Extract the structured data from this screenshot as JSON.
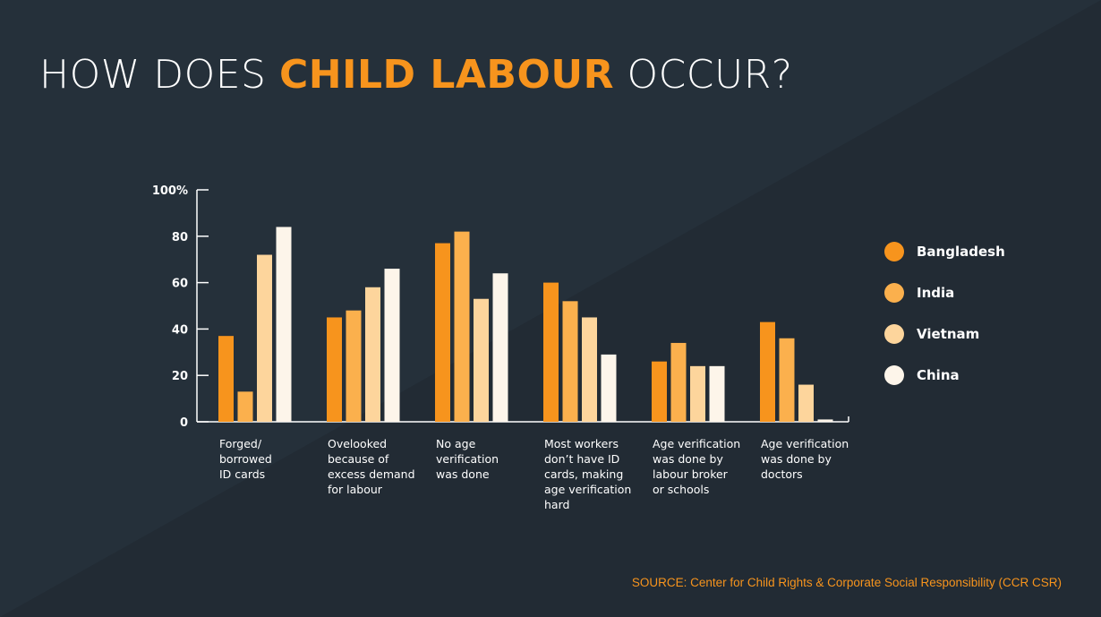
{
  "title": {
    "prefix": "HOW DOES ",
    "highlight": "CHILD LABOUR",
    "suffix": " OCCUR?"
  },
  "source": "SOURCE: Center for Child Rights & Corporate Social Responsibility (CCR CSR)",
  "colors": {
    "background": "#25303a",
    "accent": "#f7941d",
    "series": [
      "#f7941d",
      "#fbb04d",
      "#fdd59c",
      "#fdf5ea"
    ]
  },
  "chart_data": {
    "type": "bar",
    "categories": [
      [
        "Forged/",
        "borrowed",
        "ID cards"
      ],
      [
        "Ovelooked",
        "because of",
        "excess demand",
        "for labour"
      ],
      [
        "No age",
        "verification",
        "was done"
      ],
      [
        "Most workers",
        "don’t have ID",
        "cards, making",
        "age verification",
        "hard"
      ],
      [
        "Age verification",
        "was done by",
        "labour broker",
        "or schools"
      ],
      [
        "Age verification",
        "was done by",
        "doctors"
      ]
    ],
    "series": [
      {
        "name": "Bangladesh",
        "values": [
          37,
          45,
          77,
          60,
          26,
          43
        ]
      },
      {
        "name": "India",
        "values": [
          13,
          48,
          82,
          52,
          34,
          36
        ]
      },
      {
        "name": "Vietnam",
        "values": [
          72,
          58,
          53,
          45,
          24,
          16
        ]
      },
      {
        "name": "China",
        "values": [
          84,
          66,
          64,
          29,
          24,
          1
        ]
      }
    ],
    "ylim": [
      0,
      100
    ],
    "yticks": [
      "0",
      "20",
      "40",
      "60",
      "80",
      "100%"
    ],
    "xlabel": "",
    "ylabel": "",
    "legend": "right",
    "grid": false
  }
}
